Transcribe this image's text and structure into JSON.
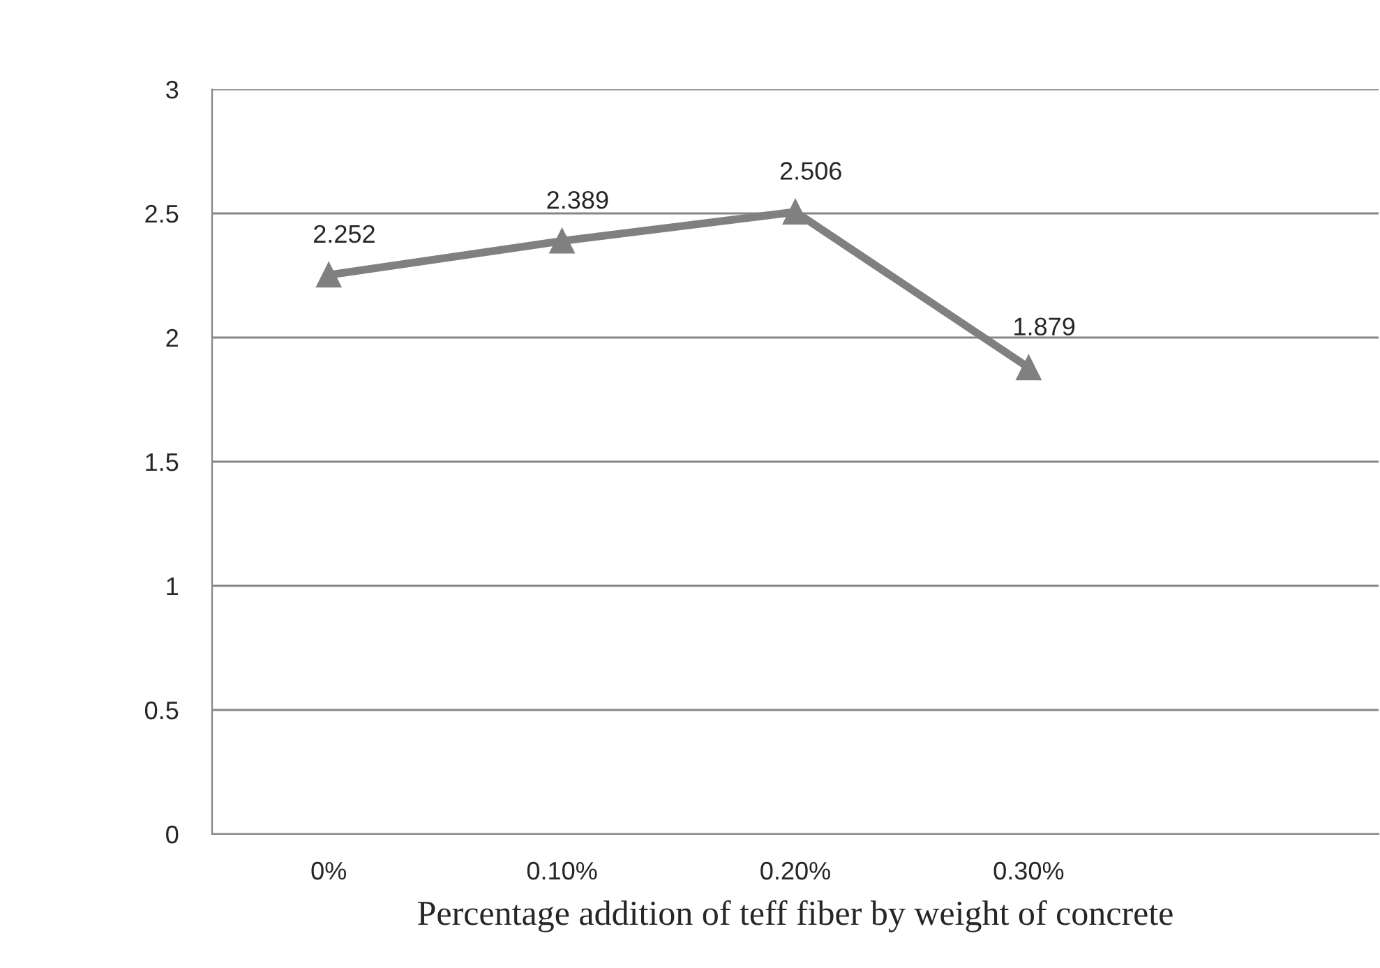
{
  "chart_data": {
    "type": "line",
    "xlabel": "Percentage addition of teff fiber by weight of concrete",
    "categories": [
      "0%",
      "0.10%",
      "0.20%",
      "0.30%",
      null
    ],
    "series": [
      {
        "color": "#808080",
        "values": [
          2.252,
          2.389,
          2.506,
          1.879,
          null
        ]
      }
    ],
    "ylim": [
      0,
      3
    ],
    "yticks": [
      0,
      0.5,
      1,
      1.5,
      2,
      2.5,
      3
    ],
    "grid": "y",
    "marker": "triangle",
    "line_style": "solid",
    "data_labels": true,
    "legend": false
  }
}
